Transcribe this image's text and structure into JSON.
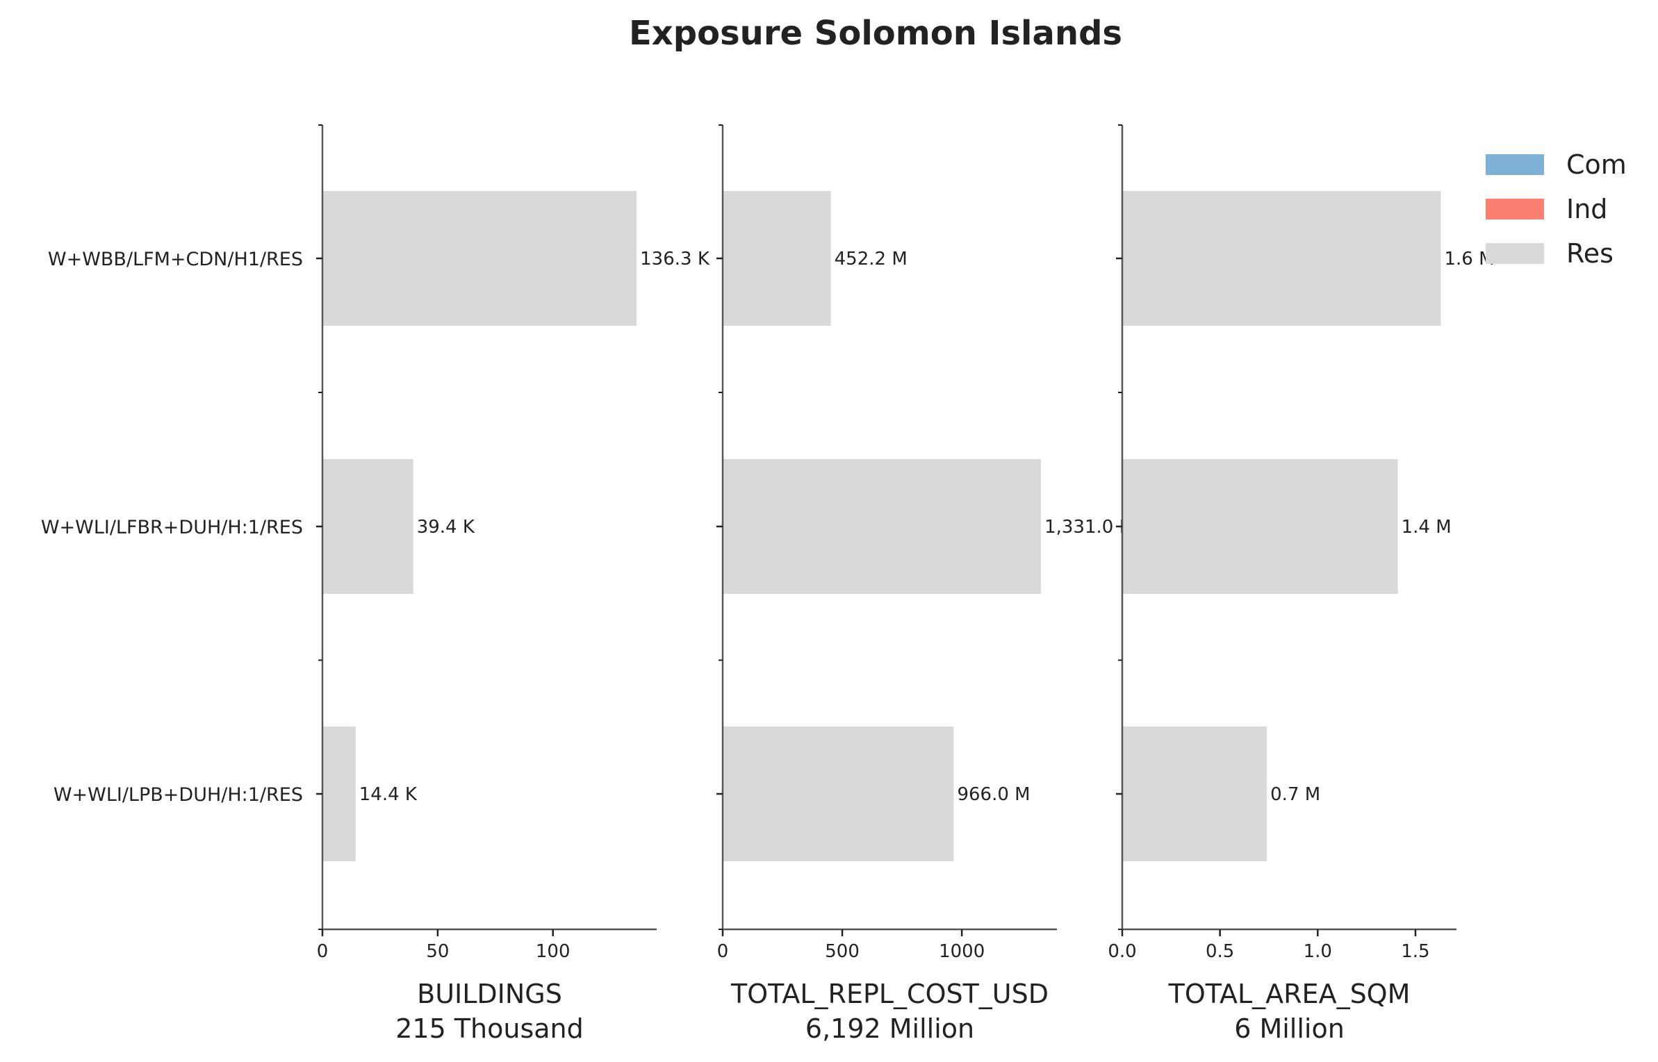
{
  "chart_data": {
    "type": "bar",
    "orientation": "horizontal",
    "title": "Exposure Solomon Islands",
    "categories": [
      "W+WBB/LFM+CDN/H1/RES",
      "W+WLI/LFBR+DUH/H:1/RES",
      "W+WLI/LPB+DUH/H:1/RES"
    ],
    "legend": {
      "placement": "top-right",
      "entries": [
        {
          "name": "Com",
          "color": "#7fb0d6"
        },
        {
          "name": "Ind",
          "color": "#fb8072"
        },
        {
          "name": "Res",
          "color": "#d9d9d9"
        }
      ]
    },
    "bar_color": "#d9d9d9",
    "panels": [
      {
        "xlabel": "BUILDINGS",
        "total_label": "215 Thousand",
        "xlim": [
          0,
          145
        ],
        "ticks": [
          0,
          50,
          100
        ],
        "tick_labels": [
          "0",
          "50",
          "100"
        ],
        "series": [
          {
            "name": "Res",
            "values": [
              136.3,
              39.4,
              14.4
            ]
          }
        ],
        "value_labels": [
          "136.3 K",
          "39.4 K",
          "14.4 K"
        ]
      },
      {
        "xlabel": "TOTAL_REPL_COST_USD",
        "total_label": "6,192 Million",
        "xlim": [
          0,
          1397.6
        ],
        "ticks": [
          0,
          500,
          1000
        ],
        "tick_labels": [
          "0",
          "500",
          "1000"
        ],
        "series": [
          {
            "name": "Res",
            "values": [
              452.2,
              1331.0,
              966.0
            ]
          }
        ],
        "value_labels": [
          "452.2 M",
          "1,331.0 M",
          "966.0 M"
        ]
      },
      {
        "xlabel": "TOTAL_AREA_SQM",
        "total_label": "6 Million",
        "xlim": [
          0,
          1.71
        ],
        "ticks": [
          0,
          0.5,
          1.0,
          1.5
        ],
        "tick_labels": [
          "0.0",
          "0.5",
          "1.0",
          "1.5"
        ],
        "series": [
          {
            "name": "Res",
            "values": [
              1.63,
              1.41,
              0.74
            ]
          }
        ],
        "value_labels": [
          "1.6 M",
          "1.4 M",
          "0.7 M"
        ]
      }
    ]
  }
}
